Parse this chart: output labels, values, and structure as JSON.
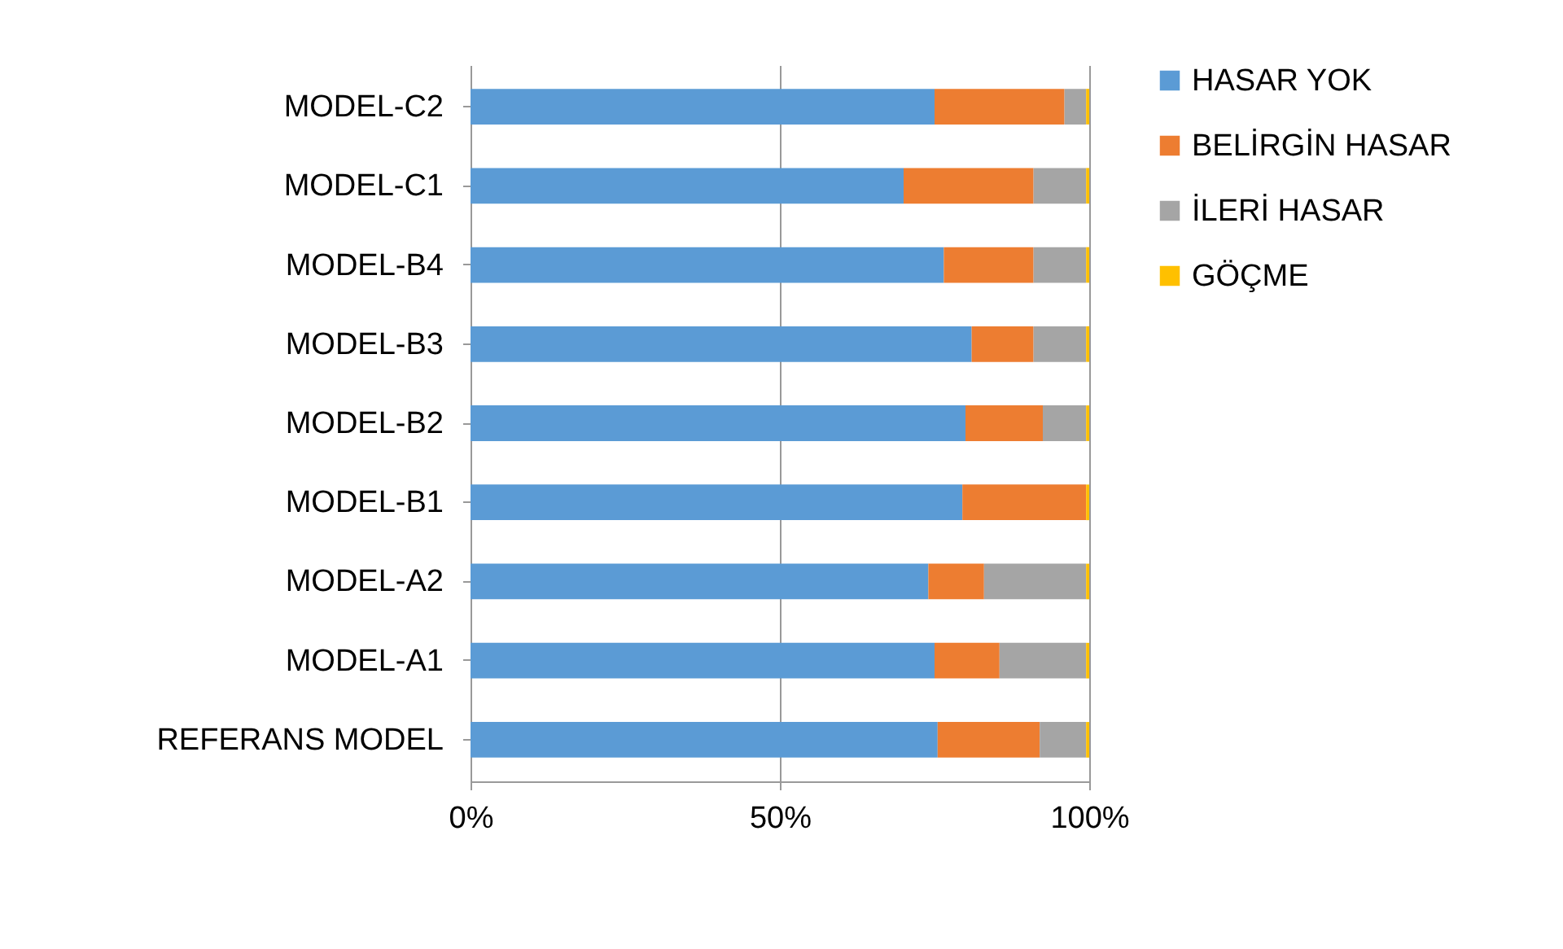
{
  "chart_data": {
    "type": "bar",
    "orientation": "horizontal",
    "stacked": true,
    "categories": [
      "MODEL-C2",
      "MODEL-C1",
      "MODEL-B4",
      "MODEL-B3",
      "MODEL-B2",
      "MODEL-B1",
      "MODEL-A2",
      "MODEL-A1",
      "REFERANS MODEL"
    ],
    "series": [
      {
        "name": "HASAR YOK",
        "color": "#5b9bd5",
        "values": [
          75,
          70,
          76.5,
          81,
          80,
          79.5,
          74,
          75,
          75.5
        ]
      },
      {
        "name": "BELİRGİN HASAR",
        "color": "#ed7d31",
        "values": [
          21,
          21,
          14.5,
          10,
          12.5,
          20,
          9,
          10.5,
          16.5
        ]
      },
      {
        "name": "İLERİ HASAR",
        "color": "#a5a5a5",
        "values": [
          3.5,
          8.5,
          8.5,
          8.5,
          7,
          0,
          16.5,
          14,
          7.5
        ]
      },
      {
        "name": "GÖÇME",
        "color": "#ffc000",
        "values": [
          0.5,
          0.5,
          0.5,
          0.5,
          0.5,
          0.5,
          0.5,
          0.5,
          0.5
        ]
      }
    ],
    "xlim": [
      0,
      100
    ],
    "xticks": [
      {
        "value": 0,
        "label": "0%"
      },
      {
        "value": 50,
        "label": "50%"
      },
      {
        "value": 100,
        "label": "100%"
      }
    ],
    "grid": "x",
    "legend": "right"
  }
}
